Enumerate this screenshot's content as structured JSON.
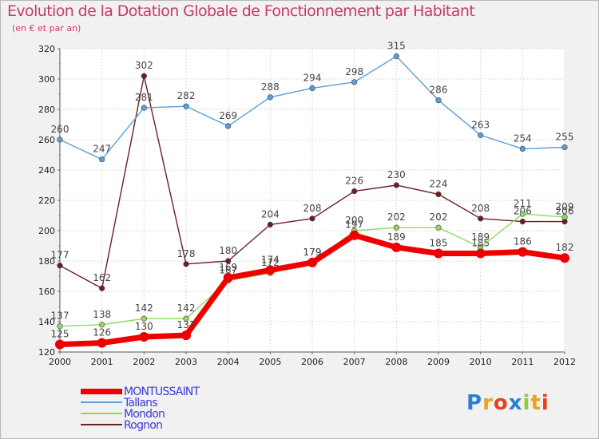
{
  "chart_data": {
    "type": "line",
    "title": "Evolution de la Dotation Globale de Fonctionnement par Habitant",
    "subtitle": "(en € et par an)",
    "xlabel": "",
    "ylabel": "",
    "categories": [
      "2000",
      "2001",
      "2002",
      "2003",
      "2004",
      "2005",
      "2006",
      "2007",
      "2008",
      "2009",
      "2010",
      "2011",
      "2012"
    ],
    "ylim": [
      120,
      320
    ],
    "yticks": [
      120,
      140,
      160,
      180,
      200,
      220,
      240,
      260,
      280,
      300,
      320
    ],
    "grid": true,
    "legend_position": "bottom-left",
    "series": [
      {
        "name": "Rognon",
        "color": "#6b1f24",
        "values": [
          177,
          162,
          302,
          178,
          180,
          204,
          208,
          226,
          230,
          224,
          208,
          206,
          206
        ]
      },
      {
        "name": "Mondon",
        "color": "#8fd95e",
        "values": [
          137,
          138,
          142,
          142,
          167,
          172,
          179,
          200,
          202,
          202,
          189,
          211,
          209
        ]
      },
      {
        "name": "Tallans",
        "color": "#5a9fd6",
        "values": [
          260,
          247,
          281,
          282,
          269,
          288,
          294,
          298,
          315,
          286,
          263,
          254,
          255
        ]
      },
      {
        "name": "MONTUSSAINT",
        "color": "#ee0000",
        "values": [
          125,
          126,
          130,
          131,
          169,
          174,
          179,
          197,
          189,
          185,
          185,
          186,
          182
        ]
      }
    ]
  },
  "legend": {
    "items": [
      {
        "name": "MONTUSSAINT",
        "color": "#ee0000",
        "width": 7
      },
      {
        "name": "Tallans",
        "color": "#5a9fd6",
        "width": 1.5
      },
      {
        "name": "Mondon",
        "color": "#8fd95e",
        "width": 1.5
      },
      {
        "name": "Rognon",
        "color": "#6b1f24",
        "width": 1.5
      }
    ]
  },
  "logo": {
    "text": "Proxiti",
    "letter_colors": [
      "#2b7fd4",
      "#f0a020",
      "#e84020",
      "#2b7fd4",
      "#8fcf30",
      "#f0a020",
      "#e84020"
    ]
  }
}
